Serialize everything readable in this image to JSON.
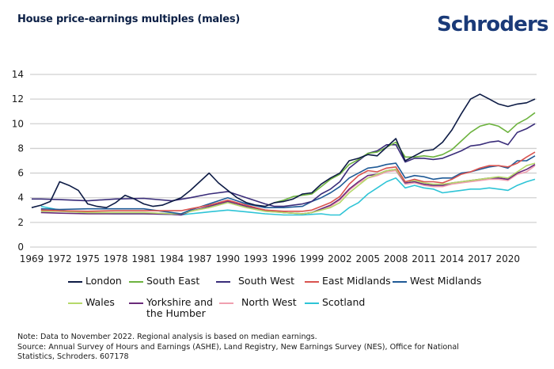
{
  "header": {
    "title": "House price-earnings multiples (males)",
    "logo": "Schroders",
    "logo_color": "#1a3a78"
  },
  "footnote": {
    "line1": "Note: Data to November 2022. Regional analysis is based on median earnings.",
    "line2": "Source: Annual Survey of Hours and Earnings (ASHE), Land Registry, New Earnings Survey (NES), Office for National",
    "line3": "Statistics, Schroders. 607178"
  },
  "chart_data": {
    "type": "line",
    "title": "House price-earnings multiples (males)",
    "xlabel": "",
    "ylabel": "",
    "ylim": [
      0,
      14
    ],
    "xlim": [
      1969,
      2022.9
    ],
    "yticks": [
      "0",
      "2",
      "4",
      "6",
      "8",
      "10",
      "12",
      "14"
    ],
    "xticks": [
      "1969",
      "1972",
      "1975",
      "1978",
      "1981",
      "1984",
      "1987",
      "1990",
      "1993",
      "1996",
      "1999",
      "2002",
      "2005",
      "2008",
      "2011",
      "2014",
      "2017",
      "2020"
    ],
    "grid": true,
    "legend_position": "bottom",
    "series": [
      {
        "name": "London",
        "color": "#0d1b45",
        "x": [
          1969,
          1970,
          1971,
          1972,
          1973,
          1974,
          1975,
          1976,
          1977,
          1978,
          1979,
          1980,
          1981,
          1982,
          1983,
          1984,
          1985,
          1986,
          1987,
          1988,
          1989,
          1990,
          1991,
          1992,
          1993,
          1994,
          1995,
          1996,
          1997,
          1998,
          1999,
          2000,
          2001,
          2002,
          2003,
          2004,
          2005,
          2006,
          2007,
          2008,
          2009,
          2010,
          2011,
          2012,
          2013,
          2014,
          2015,
          2016,
          2017,
          2018,
          2019,
          2020,
          2021,
          2022,
          2022.9
        ],
        "values": [
          3.2,
          3.4,
          3.7,
          5.3,
          5.0,
          4.6,
          3.5,
          3.3,
          3.2,
          3.6,
          4.2,
          3.9,
          3.5,
          3.3,
          3.4,
          3.7,
          4.0,
          4.6,
          5.3,
          6.0,
          5.2,
          4.6,
          4.0,
          3.6,
          3.4,
          3.3,
          3.6,
          3.7,
          3.9,
          4.3,
          4.4,
          5.1,
          5.6,
          6.0,
          7.0,
          7.2,
          7.5,
          7.4,
          8.1,
          8.8,
          7.0,
          7.4,
          7.8,
          7.9,
          8.5,
          9.5,
          10.8,
          12.0,
          12.4,
          12.0,
          11.6,
          11.4,
          11.6,
          11.7,
          12.0
        ]
      },
      {
        "name": "South East",
        "color": "#6db33f",
        "x": [
          1995,
          1996,
          1997,
          1998,
          1999,
          2000,
          2001,
          2002,
          2003,
          2004,
          2005,
          2006,
          2007,
          2008,
          2009,
          2010,
          2011,
          2012,
          2013,
          2014,
          2015,
          2016,
          2017,
          2018,
          2019,
          2020,
          2021,
          2022,
          2022.9
        ],
        "values": [
          3.6,
          3.8,
          4.1,
          4.2,
          4.3,
          4.9,
          5.5,
          5.9,
          6.7,
          7.1,
          7.6,
          7.7,
          8.1,
          8.5,
          7.3,
          7.3,
          7.4,
          7.3,
          7.5,
          7.9,
          8.6,
          9.3,
          9.8,
          10.0,
          9.8,
          9.3,
          10.0,
          10.4,
          10.9
        ]
      },
      {
        "name": "South West",
        "color": "#3a2d7a",
        "x": [
          1969,
          1970,
          1972,
          1975,
          1978,
          1981,
          1984,
          1986,
          1988,
          1990,
          1992,
          1994,
          1995,
          1996,
          1997,
          1998,
          1999,
          2000,
          2001,
          2002,
          2003,
          2004,
          2005,
          2006,
          2007,
          2008,
          2009,
          2010,
          2011,
          2012,
          2013,
          2014,
          2015,
          2016,
          2017,
          2018,
          2019,
          2020,
          2021,
          2022,
          2022.9
        ],
        "values": [
          3.9,
          3.9,
          3.85,
          3.75,
          3.9,
          3.95,
          3.75,
          4.0,
          4.3,
          4.5,
          4.0,
          3.5,
          3.3,
          3.3,
          3.4,
          3.5,
          3.7,
          4.3,
          4.7,
          5.3,
          6.4,
          7.0,
          7.6,
          7.8,
          8.3,
          8.3,
          6.9,
          7.2,
          7.2,
          7.1,
          7.2,
          7.5,
          7.8,
          8.2,
          8.3,
          8.5,
          8.6,
          8.3,
          9.3,
          9.6,
          10.0
        ]
      },
      {
        "name": "East Midlands",
        "color": "#d9534f",
        "x": [
          1970,
          1972,
          1975,
          1978,
          1981,
          1984,
          1985,
          1986,
          1988,
          1990,
          1992,
          1994,
          1996,
          1998,
          1999,
          2000,
          2001,
          2002,
          2003,
          2004,
          2005,
          2006,
          2007,
          2008,
          2009,
          2010,
          2011,
          2012,
          2013,
          2014,
          2015,
          2016,
          2017,
          2018,
          2019,
          2020,
          2021,
          2022,
          2022.9
        ],
        "values": [
          3.0,
          2.95,
          2.9,
          2.95,
          2.95,
          2.95,
          2.95,
          3.1,
          3.4,
          3.8,
          3.4,
          3.0,
          2.9,
          2.9,
          3.0,
          3.3,
          3.6,
          4.1,
          5.1,
          5.8,
          6.2,
          6.1,
          6.4,
          6.5,
          5.3,
          5.5,
          5.3,
          5.3,
          5.2,
          5.5,
          5.9,
          6.1,
          6.4,
          6.6,
          6.6,
          6.5,
          6.8,
          7.3,
          7.7
        ]
      },
      {
        "name": "West Midlands",
        "color": "#1f5a96",
        "x": [
          1970,
          1972,
          1975,
          1978,
          1981,
          1984,
          1985,
          1986,
          1988,
          1990,
          1992,
          1994,
          1996,
          1998,
          1999,
          2000,
          2001,
          2002,
          2003,
          2004,
          2005,
          2006,
          2007,
          2008,
          2009,
          2010,
          2011,
          2012,
          2013,
          2014,
          2015,
          2016,
          2017,
          2018,
          2019,
          2020,
          2021,
          2022,
          2022.9
        ],
        "values": [
          3.1,
          3.05,
          3.1,
          3.1,
          3.1,
          2.8,
          2.7,
          3.0,
          3.5,
          4.0,
          3.5,
          3.2,
          3.2,
          3.3,
          3.7,
          4.0,
          4.4,
          4.9,
          5.6,
          6.0,
          6.4,
          6.5,
          6.7,
          6.8,
          5.6,
          5.8,
          5.7,
          5.5,
          5.6,
          5.6,
          6.0,
          6.1,
          6.3,
          6.5,
          6.6,
          6.4,
          7.0,
          7.0,
          7.4
        ]
      },
      {
        "name": "Wales",
        "color": "#b5d96a",
        "x": [
          1970,
          1972,
          1975,
          1978,
          1981,
          1984,
          1985,
          1986,
          1988,
          1990,
          1992,
          1994,
          1996,
          1998,
          1999,
          2000,
          2001,
          2002,
          2003,
          2004,
          2005,
          2006,
          2007,
          2008,
          2009,
          2010,
          2011,
          2012,
          2013,
          2014,
          2015,
          2016,
          2017,
          2018,
          2019,
          2020,
          2021,
          2022,
          2022.9
        ],
        "values": [
          2.9,
          2.9,
          2.8,
          2.8,
          2.8,
          2.7,
          2.7,
          2.9,
          3.2,
          3.6,
          3.2,
          2.9,
          2.8,
          2.7,
          2.8,
          3.0,
          3.2,
          3.6,
          4.4,
          5.0,
          5.6,
          5.9,
          6.2,
          6.3,
          5.3,
          5.4,
          5.2,
          5.1,
          5.1,
          5.2,
          5.3,
          5.4,
          5.5,
          5.6,
          5.7,
          5.6,
          6.1,
          6.6,
          6.8
        ]
      },
      {
        "name": "Yorkshire and the Humber",
        "color": "#6a2a7a",
        "x": [
          1970,
          1972,
          1975,
          1978,
          1981,
          1984,
          1985,
          1986,
          1988,
          1990,
          1992,
          1994,
          1996,
          1998,
          1999,
          2000,
          2001,
          2002,
          2003,
          2004,
          2005,
          2006,
          2007,
          2008,
          2009,
          2010,
          2011,
          2012,
          2013,
          2014,
          2015,
          2016,
          2017,
          2018,
          2019,
          2020,
          2021,
          2022,
          2022.9
        ],
        "values": [
          2.8,
          2.75,
          2.7,
          2.7,
          2.7,
          2.65,
          2.6,
          2.9,
          3.3,
          3.7,
          3.3,
          3.0,
          2.8,
          2.7,
          2.8,
          3.1,
          3.4,
          3.9,
          4.7,
          5.3,
          5.8,
          5.9,
          6.2,
          6.3,
          5.2,
          5.3,
          5.1,
          5.0,
          5.0,
          5.2,
          5.3,
          5.4,
          5.5,
          5.6,
          5.6,
          5.5,
          6.0,
          6.3,
          6.7
        ]
      },
      {
        "name": "North West",
        "color": "#f0a0b0",
        "x": [
          1970,
          1972,
          1975,
          1978,
          1981,
          1984,
          1985,
          1986,
          1988,
          1990,
          1992,
          1994,
          1996,
          1998,
          1999,
          2000,
          2001,
          2002,
          2003,
          2004,
          2005,
          2006,
          2007,
          2008,
          2009,
          2010,
          2011,
          2012,
          2013,
          2014,
          2015,
          2016,
          2017,
          2018,
          2019,
          2020,
          2021,
          2022,
          2022.9
        ],
        "values": [
          3.0,
          2.9,
          2.8,
          2.8,
          2.8,
          2.7,
          2.65,
          2.9,
          3.2,
          3.6,
          3.2,
          2.9,
          2.8,
          2.7,
          2.8,
          3.0,
          3.3,
          3.8,
          4.6,
          5.2,
          5.6,
          5.8,
          6.1,
          6.2,
          5.1,
          5.2,
          5.0,
          4.9,
          4.9,
          5.1,
          5.2,
          5.3,
          5.4,
          5.5,
          5.5,
          5.4,
          5.9,
          6.1,
          6.6
        ]
      },
      {
        "name": "Scotland",
        "color": "#2ec4d6",
        "x": [
          1970,
          1972,
          1975,
          1978,
          1981,
          1984,
          1985,
          1986,
          1988,
          1990,
          1992,
          1994,
          1996,
          1998,
          1999,
          2000,
          2001,
          2002,
          2003,
          2004,
          2005,
          2006,
          2007,
          2008,
          2009,
          2010,
          2011,
          2012,
          2013,
          2014,
          2015,
          2016,
          2017,
          2018,
          2019,
          2020,
          2021,
          2022,
          2022.9
        ],
        "values": [
          3.3,
          3.0,
          2.75,
          2.7,
          2.7,
          2.65,
          2.6,
          2.7,
          2.85,
          3.0,
          2.85,
          2.7,
          2.6,
          2.6,
          2.65,
          2.7,
          2.6,
          2.6,
          3.2,
          3.6,
          4.3,
          4.8,
          5.3,
          5.6,
          4.8,
          5.0,
          4.8,
          4.7,
          4.4,
          4.5,
          4.6,
          4.7,
          4.7,
          4.8,
          4.7,
          4.6,
          5.0,
          5.3,
          5.5
        ]
      }
    ]
  },
  "legend": {
    "items": [
      {
        "label": "London",
        "color": "#0d1b45"
      },
      {
        "label": "South East",
        "color": "#6db33f"
      },
      {
        "label": "South West",
        "color": "#3a2d7a"
      },
      {
        "label": "East Midlands",
        "color": "#d9534f"
      },
      {
        "label": "West Midlands",
        "color": "#1f5a96"
      },
      {
        "label": "Wales",
        "color": "#b5d96a"
      },
      {
        "label": "Yorkshire and the Humber",
        "label_line1": "Yorkshire and",
        "label_line2": "the Humber",
        "color": "#6a2a7a"
      },
      {
        "label": "North West",
        "color": "#f0a0b0"
      },
      {
        "label": "Scotland",
        "color": "#2ec4d6"
      }
    ]
  }
}
